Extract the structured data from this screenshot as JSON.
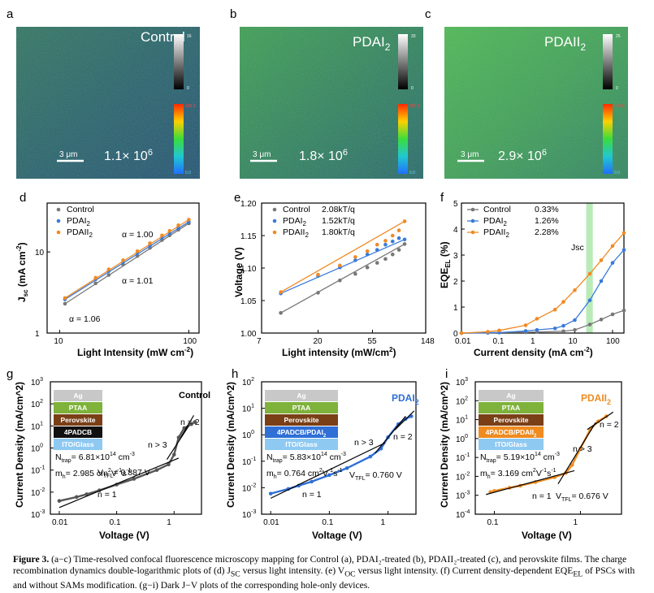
{
  "images": [
    {
      "panel": "a",
      "title": "Control",
      "scale_bar": "3 μm",
      "lifetime_label": "1.1× 10",
      "lifetime_exp": "6",
      "cbar_top_max": "16",
      "cbar_top_min": "0",
      "cbar_bot_max": "100.0",
      "cbar_bot_min": "0.0"
    },
    {
      "panel": "b",
      "title": "PDAI",
      "title_sub": "2",
      "scale_bar": "3 μm",
      "lifetime_label": "1.8× 10",
      "lifetime_exp": "6",
      "cbar_top_max": "33",
      "cbar_top_min": "0",
      "cbar_bot_max": "100.0",
      "cbar_bot_min": "0.0"
    },
    {
      "panel": "c",
      "title": "PDAII",
      "title_sub": "2",
      "scale_bar": "3 μm",
      "lifetime_label": "2.9× 10",
      "lifetime_exp": "6",
      "cbar_top_max": "25",
      "cbar_top_min": "0",
      "cbar_bot_max": "100.0",
      "cbar_bot_min": "0.0"
    }
  ],
  "chart_data": [
    {
      "panel": "d",
      "type": "scatter",
      "xscale": "log",
      "yscale": "log",
      "xlabel": "Light Intensity (mW cm",
      "xlabel_sup": "-2",
      "xlabel_end": ")",
      "ylabel": "J",
      "ylabel_sub": "sc",
      "ylabel_rest": " (mA cm",
      "ylabel_sup": "-2",
      "ylabel_end": ")",
      "xticks": [
        "10",
        "100"
      ],
      "yticks": [
        "1",
        "10"
      ],
      "xlim": [
        8,
        120
      ],
      "ylim": [
        1,
        40
      ],
      "series": [
        {
          "name": "Control",
          "color": "#777777",
          "x": [
            11,
            19,
            24,
            31,
            40,
            50,
            62,
            71,
            83,
            100
          ],
          "y": [
            2.3,
            4.1,
            5.2,
            7.0,
            8.9,
            11.2,
            14.0,
            16.0,
            18.8,
            22.5
          ],
          "fit_label": "α = 1.06"
        },
        {
          "name": "PDAI",
          "name_sub": "2",
          "color": "#3a7ad9",
          "x": [
            11,
            19,
            24,
            31,
            40,
            50,
            62,
            71,
            83,
            100
          ],
          "y": [
            2.6,
            4.6,
            5.8,
            7.5,
            9.6,
            12.0,
            15.0,
            17.0,
            19.8,
            23.5
          ],
          "fit_label": "α = 1.01"
        },
        {
          "name": "PDAII",
          "name_sub": "2",
          "color": "#f08a24",
          "x": [
            11,
            19,
            24,
            31,
            40,
            50,
            62,
            71,
            83,
            100
          ],
          "y": [
            2.7,
            4.8,
            6.1,
            7.9,
            10.2,
            12.8,
            16.0,
            18.2,
            21.3,
            25.0
          ],
          "fit_label": "α = 1.00"
        }
      ]
    },
    {
      "panel": "e",
      "type": "scatter",
      "xscale": "log",
      "yscale": "linear",
      "xlabel": "Light intensity (mW/cm",
      "xlabel_sup": "2",
      "xlabel_end": ")",
      "ylabel": "Voltage (V)",
      "xticks": [
        "7",
        "20",
        "55",
        "148"
      ],
      "yticks": [
        "1.00",
        "1.05",
        "1.10",
        "1.15",
        "1.20"
      ],
      "xlim": [
        7,
        148
      ],
      "ylim": [
        1.0,
        1.2
      ],
      "series": [
        {
          "name": "Control",
          "color": "#777777",
          "fit_label": "2.08kT/q",
          "x": [
            10,
            20,
            30,
            40,
            50,
            60,
            70,
            80,
            90,
            100
          ],
          "y": [
            1.031,
            1.062,
            1.081,
            1.091,
            1.101,
            1.108,
            1.114,
            1.121,
            1.128,
            1.137
          ]
        },
        {
          "name": "PDAI",
          "name_sub": "2",
          "color": "#3a7ad9",
          "fit_label": "1.52kT/q",
          "x": [
            10,
            20,
            30,
            40,
            50,
            60,
            70,
            80,
            90,
            100
          ],
          "y": [
            1.061,
            1.088,
            1.101,
            1.112,
            1.121,
            1.128,
            1.136,
            1.141,
            1.146,
            1.144
          ]
        },
        {
          "name": "PDAII",
          "name_sub": "2",
          "color": "#f08a24",
          "fit_label": "1.80kT/q",
          "x": [
            10,
            20,
            30,
            40,
            50,
            60,
            70,
            80,
            90,
            100
          ],
          "y": [
            1.063,
            1.09,
            1.104,
            1.117,
            1.126,
            1.136,
            1.142,
            1.15,
            1.158,
            1.172
          ]
        }
      ]
    },
    {
      "panel": "f",
      "type": "line",
      "xscale": "log",
      "yscale": "linear",
      "xlabel": "Current density (mA cm",
      "xlabel_sup": "-2",
      "xlabel_end": ")",
      "ylabel": "EQE",
      "ylabel_sub": "EL",
      "ylabel_end": " (%)",
      "xticks": [
        "0.01",
        "0.1",
        "1",
        "10",
        "100"
      ],
      "yticks": [
        "0",
        "1",
        "2",
        "3",
        "4",
        "5"
      ],
      "xlim": [
        0.01,
        200
      ],
      "ylim": [
        0,
        5
      ],
      "annotation": "Jsc",
      "series": [
        {
          "name": "Control",
          "color": "#777777",
          "fit_label": "0.33%",
          "x": [
            0.01,
            0.05,
            0.1,
            0.5,
            1,
            5,
            10,
            25,
            50,
            100,
            200
          ],
          "y": [
            0.0,
            0.01,
            0.02,
            0.03,
            0.04,
            0.07,
            0.12,
            0.33,
            0.52,
            0.72,
            0.87
          ]
        },
        {
          "name": "PDAI",
          "name_sub": "2",
          "color": "#3a7ad9",
          "fit_label": "1.26%",
          "x": [
            0.01,
            0.05,
            0.1,
            0.5,
            1,
            3,
            5,
            10,
            25,
            50,
            100,
            200
          ],
          "y": [
            0.0,
            0.01,
            0.02,
            0.08,
            0.12,
            0.18,
            0.28,
            0.5,
            1.26,
            2.0,
            2.7,
            3.2
          ]
        },
        {
          "name": "PDAII",
          "name_sub": "2",
          "color": "#f08a24",
          "fit_label": "2.28%",
          "x": [
            0.01,
            0.05,
            0.1,
            0.5,
            1,
            3,
            5,
            10,
            25,
            50,
            100,
            200
          ],
          "y": [
            0.0,
            0.05,
            0.1,
            0.3,
            0.55,
            0.9,
            1.2,
            1.65,
            2.28,
            2.8,
            3.35,
            3.85
          ]
        }
      ]
    },
    {
      "panel": "g",
      "type": "line",
      "xscale": "log",
      "yscale": "log",
      "xlabel": "Voltage (V)",
      "ylabel": "Current Density (mA/cm^2)",
      "series_label": "Control",
      "color": "#555555",
      "xticks": [
        "0.01",
        "0.1",
        "1"
      ],
      "yticks": [
        "10",
        "10",
        "10",
        "10",
        "10",
        "10",
        "10"
      ],
      "ytick_exps": [
        "-3",
        "-2",
        "-1",
        "0",
        "1",
        "2",
        "3"
      ],
      "layers": [
        "Ag",
        "PTAA",
        "Perovskite",
        "4PADCB",
        "ITO/Glass"
      ],
      "ntrap": "N",
      "ntrap_sub": "trap",
      "ntrap_val": "= 6.81×10",
      "ntrap_exp": "14",
      "ntrap_unit": " cm",
      "ntrap_unit_exp": "-3",
      "mh": "m",
      "mh_sub": "h",
      "mh_val": "= 2.985 cm",
      "mh_exp": "2",
      "mh_unit": "V",
      "mh_unit_exp": "-1",
      "mh_s": "s",
      "mh_s_exp": "-1",
      "vtfl_pre": "V",
      "vtfl_sub": "TFL",
      "vtfl_val": "= 0.887 V",
      "n1": "n = 1",
      "n2": "n = 2",
      "n3": "n > 3",
      "x": [
        0.01,
        0.02,
        0.03,
        0.05,
        0.1,
        0.2,
        0.5,
        0.8,
        1.0,
        1.2,
        1.5,
        2.0,
        2.3
      ],
      "y": [
        0.004,
        0.006,
        0.008,
        0.012,
        0.022,
        0.04,
        0.1,
        0.18,
        0.5,
        3,
        8,
        12,
        15
      ]
    },
    {
      "panel": "h",
      "type": "line",
      "xscale": "log",
      "yscale": "log",
      "xlabel": "Voltage (V)",
      "ylabel": "Current Density (mA/cm^2)",
      "series_label": "PDAI",
      "series_sub": "2",
      "color": "#2f6fd6",
      "xticks": [
        "0.01",
        "0.1",
        "1"
      ],
      "yticks": [
        "10",
        "10",
        "10",
        "10",
        "10",
        "10"
      ],
      "ytick_exps": [
        "-3",
        "-2",
        "-1",
        "0",
        "1",
        "2"
      ],
      "layers": [
        "Ag",
        "PTAA",
        "Perovskite",
        "4PADCB/PDAI",
        "ITO/Glass"
      ],
      "layer_sub_index": 3,
      "layer_sub": "2",
      "ntrap": "N",
      "ntrap_sub": "trap",
      "ntrap_val": "= 5.83×10",
      "ntrap_exp": "14",
      "ntrap_unit": " cm",
      "ntrap_unit_exp": "-3",
      "mh": "m",
      "mh_sub": "h",
      "mh_val": "= 0.764 cm",
      "mh_exp": "2",
      "mh_unit": "V",
      "mh_unit_exp": "-1",
      "mh_s": "s",
      "mh_s_exp": "-1",
      "vtfl_pre": "V",
      "vtfl_sub": "TFL",
      "vtfl_val": "= 0.760 V",
      "n1": "n = 1",
      "n2": "n = 2",
      "n3": "n > 3",
      "x": [
        0.01,
        0.02,
        0.03,
        0.05,
        0.1,
        0.2,
        0.5,
        0.76,
        1.0,
        1.5,
        2.0,
        2.5
      ],
      "y": [
        0.006,
        0.009,
        0.012,
        0.017,
        0.03,
        0.055,
        0.15,
        0.3,
        0.8,
        2.5,
        4,
        5
      ]
    },
    {
      "panel": "i",
      "type": "line",
      "xscale": "log",
      "yscale": "log",
      "xlabel": "Voltage (V)",
      "ylabel": "Current Density (mA/cm^2)",
      "series_label": "PDAII",
      "series_sub": "2",
      "color": "#ef8b20",
      "xticks": [
        "0.1",
        "1"
      ],
      "yticks": [
        "10",
        "10",
        "10",
        "10",
        "10",
        "10",
        "10",
        "10"
      ],
      "ytick_exps": [
        "-4",
        "-3",
        "-2",
        "-1",
        "0",
        "1",
        "2",
        "3"
      ],
      "layers": [
        "Ag",
        "PTAA",
        "Perovskite",
        "4PADCB/PDAII",
        "ITO/Glass"
      ],
      "layer_sub_index": 3,
      "layer_sub": "2",
      "ntrap": "N",
      "ntrap_sub": "trap",
      "ntrap_val": "= 5.19×10",
      "ntrap_exp": "14",
      "ntrap_unit": " cm",
      "ntrap_unit_exp": "-3",
      "mh": "m",
      "mh_sub": "h",
      "mh_val": "= 3.169 cm",
      "mh_exp": "2",
      "mh_unit": "V",
      "mh_unit_exp": "-1",
      "mh_s": "s",
      "mh_s_exp": "-1",
      "vtfl_pre": "V",
      "vtfl_sub": "TFL",
      "vtfl_val": "= 0.676 V",
      "n1": "n = 1",
      "n2": "n = 2",
      "n3": "n > 3",
      "x": [
        0.09,
        0.1,
        0.15,
        0.2,
        0.3,
        0.5,
        0.676,
        0.8,
        1.0,
        1.3,
        1.6,
        2.0
      ],
      "y": [
        0.0015,
        0.0017,
        0.0025,
        0.0032,
        0.005,
        0.009,
        0.015,
        0.04,
        0.3,
        3,
        8,
        15
      ]
    }
  ],
  "caption": {
    "label": "Figure 3.",
    "text": "(a−c) Time-resolved confocal fluorescence microscopy mapping for Control (a), PDAI₂-treated (b), PDAII₂-treated (c), and perovskite films. The charge recombination dynamics double-logarithmic plots of (d) J",
    "jsc_sub": "SC",
    "text2": " versus light intensity. (e) V",
    "voc_sub": "OC",
    "text3": " versus light intensity. (f) Current density-dependent EQE",
    "eqe_sub": "EL",
    "text4": " of PSCs with and without SAMs modification. (g−i) Dark J−V plots of the corresponding hole-only devices."
  }
}
